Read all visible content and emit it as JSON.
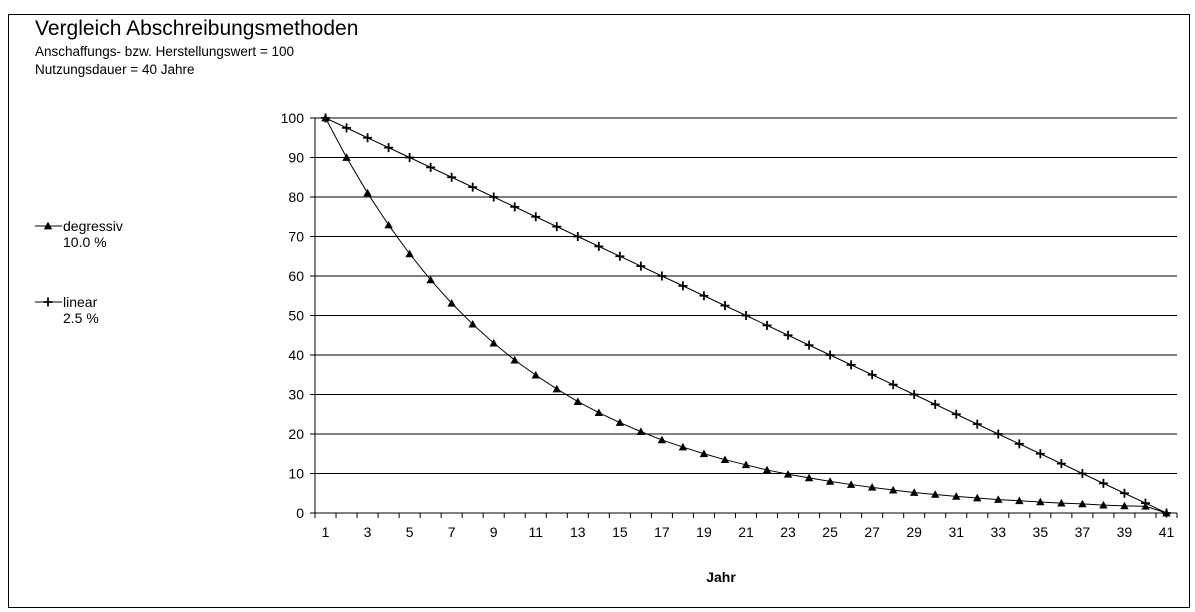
{
  "chart_data": {
    "type": "line",
    "title": "Vergleich Abschreibungsmethoden",
    "subtitles": [
      "Anschaffungs- bzw. Herstellungswert = 100",
      "Nutzungsdauer = 40 Jahre"
    ],
    "xlabel": "Jahr",
    "ylabel": "",
    "x": [
      1,
      2,
      3,
      4,
      5,
      6,
      7,
      8,
      9,
      10,
      11,
      12,
      13,
      14,
      15,
      16,
      17,
      18,
      19,
      20,
      21,
      22,
      23,
      24,
      25,
      26,
      27,
      28,
      29,
      30,
      31,
      32,
      33,
      34,
      35,
      36,
      37,
      38,
      39,
      40,
      41
    ],
    "x_tick_labels": [
      "1",
      "3",
      "5",
      "7",
      "9",
      "11",
      "13",
      "15",
      "17",
      "19",
      "21",
      "23",
      "25",
      "27",
      "29",
      "31",
      "33",
      "35",
      "37",
      "39",
      "41"
    ],
    "ylim": [
      0,
      100
    ],
    "y_ticks": [
      0,
      10,
      20,
      30,
      40,
      50,
      60,
      70,
      80,
      90,
      100
    ],
    "grid": "horizontal",
    "legend_position": "left",
    "series": [
      {
        "name": "degressiv",
        "rate": "10.0 %",
        "marker": "triangle",
        "color": "#000000",
        "values": [
          100,
          90,
          81,
          72.9,
          65.6,
          59,
          53.1,
          47.8,
          43,
          38.7,
          34.9,
          31.4,
          28.2,
          25.4,
          22.9,
          20.6,
          18.5,
          16.7,
          15,
          13.5,
          12.2,
          10.9,
          9.8,
          8.9,
          8,
          7.2,
          6.5,
          5.8,
          5.2,
          4.7,
          4.2,
          3.8,
          3.4,
          3.1,
          2.8,
          2.5,
          2.3,
          2,
          1.8,
          1.7,
          0
        ]
      },
      {
        "name": "linear",
        "rate": "2.5 %",
        "marker": "plus",
        "color": "#000000",
        "values": [
          100,
          97.5,
          95,
          92.5,
          90,
          87.5,
          85,
          82.5,
          80,
          77.5,
          75,
          72.5,
          70,
          67.5,
          65,
          62.5,
          60,
          57.5,
          55,
          52.5,
          50,
          47.5,
          45,
          42.5,
          40,
          37.5,
          35,
          32.5,
          30,
          27.5,
          25,
          22.5,
          20,
          17.5,
          15,
          12.5,
          10,
          7.5,
          5,
          2.5,
          0
        ]
      }
    ]
  }
}
